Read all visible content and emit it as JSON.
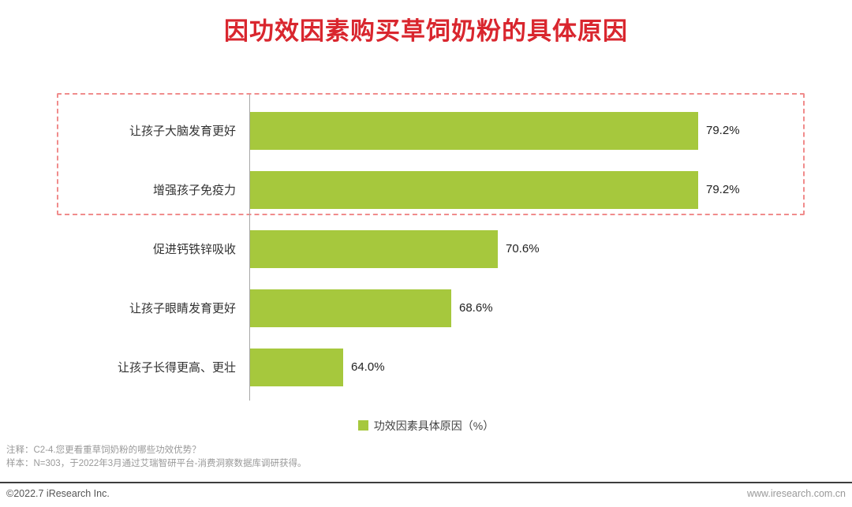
{
  "title": "因功效因素购买草饲奶粉的具体原因",
  "chart_data": {
    "type": "bar",
    "orientation": "horizontal",
    "categories": [
      "让孩子大脑发育更好",
      "增强孩子免疫力",
      "促进钙铁锌吸收",
      "让孩子眼睛发育更好",
      "让孩子长得更高、更壮"
    ],
    "values": [
      79.2,
      79.2,
      70.6,
      68.6,
      64.0
    ],
    "value_labels": [
      "79.2%",
      "79.2%",
      "70.6%",
      "68.6%",
      "64.0%"
    ],
    "legend": "功效因素具体原因（%）",
    "axis_min": 60,
    "axis_max": 80,
    "grid": false,
    "legend_position": "bottom-center",
    "bar_color": "#a6c83d",
    "highlight_rows": [
      0,
      1
    ]
  },
  "colors": {
    "title": "#d9262e",
    "bar": "#a6c83d",
    "highlight_border": "#f08c8c"
  },
  "notes": {
    "line1": "注释：C2-4.您更看重草饲奶粉的哪些功效优势？",
    "line2": "样本：N=303，于2022年3月通过艾瑞智研平台-消费洞察数据库调研获得。"
  },
  "footer": {
    "left": "©2022.7 iResearch Inc.",
    "right": "www.iresearch.com.cn"
  }
}
